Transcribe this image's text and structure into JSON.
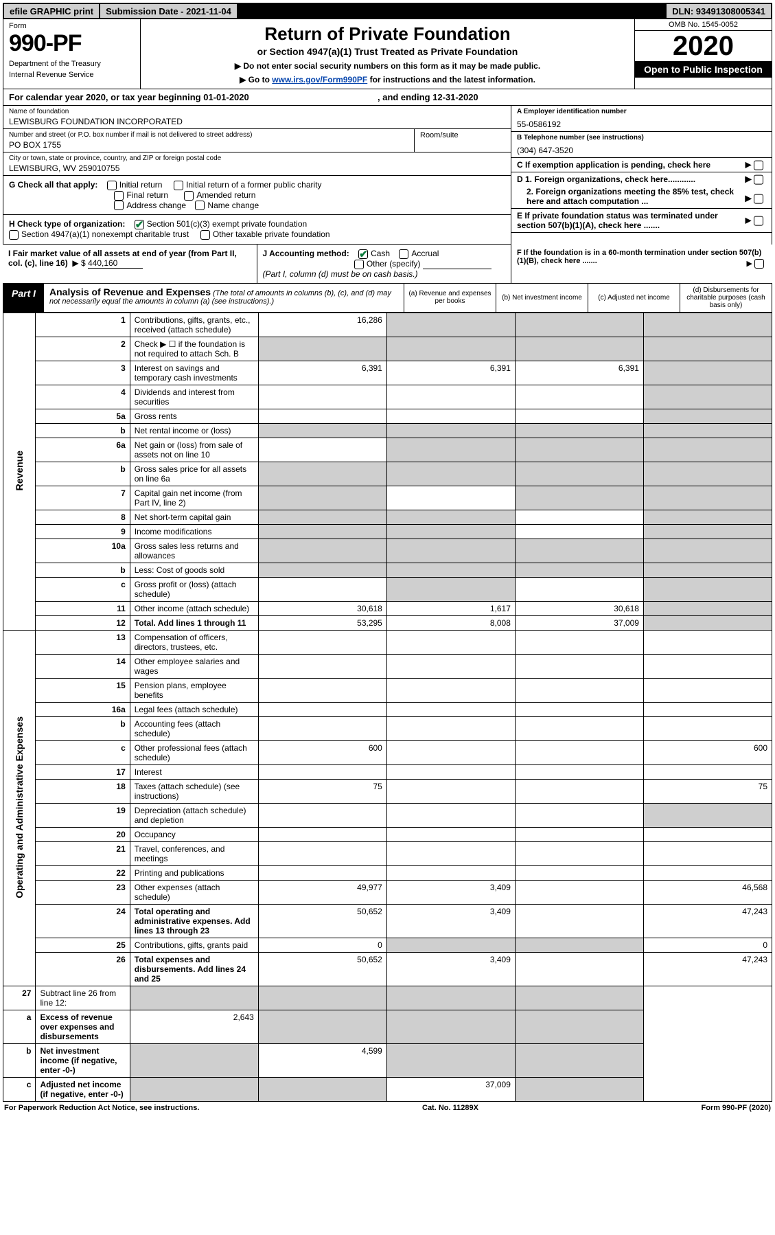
{
  "topbar": {
    "efile": "efile GRAPHIC print",
    "submission_label": "Submission Date - 2021-11-04",
    "dln": "DLN: 93491308005341"
  },
  "header": {
    "form_label": "Form",
    "form_number": "990-PF",
    "dept1": "Department of the Treasury",
    "dept2": "Internal Revenue Service",
    "title": "Return of Private Foundation",
    "subtitle": "or Section 4947(a)(1) Trust Treated as Private Foundation",
    "note1": "▶ Do not enter social security numbers on this form as it may be made public.",
    "note2_pre": "▶ Go to ",
    "note2_link": "www.irs.gov/Form990PF",
    "note2_post": " for instructions and the latest information.",
    "omb": "OMB No. 1545-0052",
    "year": "2020",
    "open": "Open to Public Inspection"
  },
  "cal_year": {
    "prefix": "For calendar year 2020, or tax year beginning ",
    "begin": "01-01-2020",
    "mid": " , and ending ",
    "end": "12-31-2020"
  },
  "info": {
    "name_lbl": "Name of foundation",
    "name_val": "LEWISBURG FOUNDATION INCORPORATED",
    "street_lbl": "Number and street (or P.O. box number if mail is not delivered to street address)",
    "street_val": "PO BOX 1755",
    "room_lbl": "Room/suite",
    "city_lbl": "City or town, state or province, country, and ZIP or foreign postal code",
    "city_val": "LEWISBURG, WV  259010755",
    "ein_lbl": "A Employer identification number",
    "ein_val": "55-0586192",
    "tel_lbl": "B Telephone number (see instructions)",
    "tel_val": "(304) 647-3520",
    "c_lbl": "C If exemption application is pending, check here",
    "d1_lbl": "D 1. Foreign organizations, check here............",
    "d2_lbl": "2. Foreign organizations meeting the 85% test, check here and attach computation ...",
    "e_lbl": "E  If private foundation status was terminated under section 507(b)(1)(A), check here .......",
    "f_lbl": "F  If the foundation is in a 60-month termination under section 507(b)(1)(B), check here .......",
    "g_lbl": "G Check all that apply:",
    "g_opts": [
      "Initial return",
      "Initial return of a former public charity",
      "Final return",
      "Amended return",
      "Address change",
      "Name change"
    ],
    "h_lbl": "H Check type of organization:",
    "h_opt1": "Section 501(c)(3) exempt private foundation",
    "h_opt2": "Section 4947(a)(1) nonexempt charitable trust",
    "h_opt3": "Other taxable private foundation",
    "i_lbl": "I Fair market value of all assets at end of year (from Part II, col. (c), line 16)",
    "i_prefix": "▶ $",
    "i_val": "440,160",
    "j_lbl": "J Accounting method:",
    "j_opt1": "Cash",
    "j_opt2": "Accrual",
    "j_opt3": "Other (specify)",
    "j_note": "(Part I, column (d) must be on cash basis.)"
  },
  "part": {
    "tab": "Part I",
    "title": "Analysis of Revenue and Expenses",
    "title_note": " (The total of amounts in columns (b), (c), and (d) may not necessarily equal the amounts in column (a) (see instructions).)",
    "col_a": "(a) Revenue and expenses per books",
    "col_b": "(b) Net investment income",
    "col_c": "(c) Adjusted net income",
    "col_d": "(d) Disbursements for charitable purposes (cash basis only)"
  },
  "sections": {
    "revenue": "Revenue",
    "expenses": "Operating and Administrative Expenses"
  },
  "rows": [
    {
      "n": "1",
      "d": "",
      "a": "16,286",
      "b": "",
      "c": "",
      "gb": true,
      "gc": true,
      "gd": true
    },
    {
      "n": "2",
      "d": "",
      "a": "",
      "b": "",
      "c": "",
      "ga": true,
      "gb": true,
      "gc": true,
      "gd": true,
      "bold_not": true
    },
    {
      "n": "3",
      "d": "",
      "a": "6,391",
      "b": "6,391",
      "c": "6,391",
      "gd": true
    },
    {
      "n": "4",
      "d": "",
      "a": "",
      "b": "",
      "c": "",
      "gd": true
    },
    {
      "n": "5a",
      "d": "",
      "a": "",
      "b": "",
      "c": "",
      "gd": true
    },
    {
      "n": "b",
      "d": "",
      "a": "",
      "b": "",
      "c": "",
      "ga": true,
      "gb": true,
      "gc": true,
      "gd": true,
      "inset": true
    },
    {
      "n": "6a",
      "d": "",
      "a": "",
      "b": "",
      "c": "",
      "gb": true,
      "gc": true,
      "gd": true
    },
    {
      "n": "b",
      "d": "",
      "a": "",
      "b": "",
      "c": "",
      "ga": true,
      "gb": true,
      "gc": true,
      "gd": true,
      "inset": true
    },
    {
      "n": "7",
      "d": "",
      "a": "",
      "b": "",
      "c": "",
      "ga": true,
      "gc": true,
      "gd": true
    },
    {
      "n": "8",
      "d": "",
      "a": "",
      "b": "",
      "c": "",
      "ga": true,
      "gb": true,
      "gd": true
    },
    {
      "n": "9",
      "d": "",
      "a": "",
      "b": "",
      "c": "",
      "ga": true,
      "gb": true,
      "gd": true
    },
    {
      "n": "10a",
      "d": "",
      "a": "",
      "b": "",
      "c": "",
      "ga": true,
      "gb": true,
      "gc": true,
      "gd": true,
      "inset": true
    },
    {
      "n": "b",
      "d": "",
      "a": "",
      "b": "",
      "c": "",
      "ga": true,
      "gb": true,
      "gc": true,
      "gd": true,
      "inset": true
    },
    {
      "n": "c",
      "d": "",
      "a": "",
      "b": "",
      "c": "",
      "gb": true,
      "gd": true
    },
    {
      "n": "11",
      "d": "",
      "a": "30,618",
      "b": "1,617",
      "c": "30,618",
      "gd": true
    },
    {
      "n": "12",
      "d": "",
      "a": "53,295",
      "b": "8,008",
      "c": "37,009",
      "gd": true,
      "bold": true
    }
  ],
  "exp_rows": [
    {
      "n": "13",
      "d": "",
      "a": "",
      "b": "",
      "c": ""
    },
    {
      "n": "14",
      "d": "",
      "a": "",
      "b": "",
      "c": ""
    },
    {
      "n": "15",
      "d": "",
      "a": "",
      "b": "",
      "c": ""
    },
    {
      "n": "16a",
      "d": "",
      "a": "",
      "b": "",
      "c": ""
    },
    {
      "n": "b",
      "d": "",
      "a": "",
      "b": "",
      "c": ""
    },
    {
      "n": "c",
      "d": "600",
      "a": "600",
      "b": "",
      "c": ""
    },
    {
      "n": "17",
      "d": "",
      "a": "",
      "b": "",
      "c": ""
    },
    {
      "n": "18",
      "d": "75",
      "a": "75",
      "b": "",
      "c": ""
    },
    {
      "n": "19",
      "d": "",
      "a": "",
      "b": "",
      "c": "",
      "gd": true
    },
    {
      "n": "20",
      "d": "",
      "a": "",
      "b": "",
      "c": ""
    },
    {
      "n": "21",
      "d": "",
      "a": "",
      "b": "",
      "c": ""
    },
    {
      "n": "22",
      "d": "",
      "a": "",
      "b": "",
      "c": ""
    },
    {
      "n": "23",
      "d": "46,568",
      "a": "49,977",
      "b": "3,409",
      "c": ""
    },
    {
      "n": "24",
      "d": "47,243",
      "a": "50,652",
      "b": "3,409",
      "c": "",
      "bold": true
    },
    {
      "n": "25",
      "d": "0",
      "a": "0",
      "b": "",
      "c": "",
      "gb": true,
      "gc": true
    },
    {
      "n": "26",
      "d": "47,243",
      "a": "50,652",
      "b": "3,409",
      "c": "",
      "bold": true
    }
  ],
  "sub_rows": [
    {
      "n": "27",
      "d": "",
      "a": "",
      "b": "",
      "c": "",
      "ga": true,
      "gb": true,
      "gc": true,
      "gd": true
    },
    {
      "n": "a",
      "d": "",
      "a": "2,643",
      "b": "",
      "c": "",
      "gb": true,
      "gc": true,
      "gd": true,
      "bold": true
    },
    {
      "n": "b",
      "d": "",
      "a": "",
      "b": "4,599",
      "c": "",
      "ga": true,
      "gc": true,
      "gd": true,
      "bold": true
    },
    {
      "n": "c",
      "d": "",
      "a": "",
      "b": "",
      "c": "37,009",
      "ga": true,
      "gb": true,
      "gd": true,
      "bold": true
    }
  ],
  "footer": {
    "left": "For Paperwork Reduction Act Notice, see instructions.",
    "mid": "Cat. No. 11289X",
    "right": "Form 990-PF (2020)"
  }
}
